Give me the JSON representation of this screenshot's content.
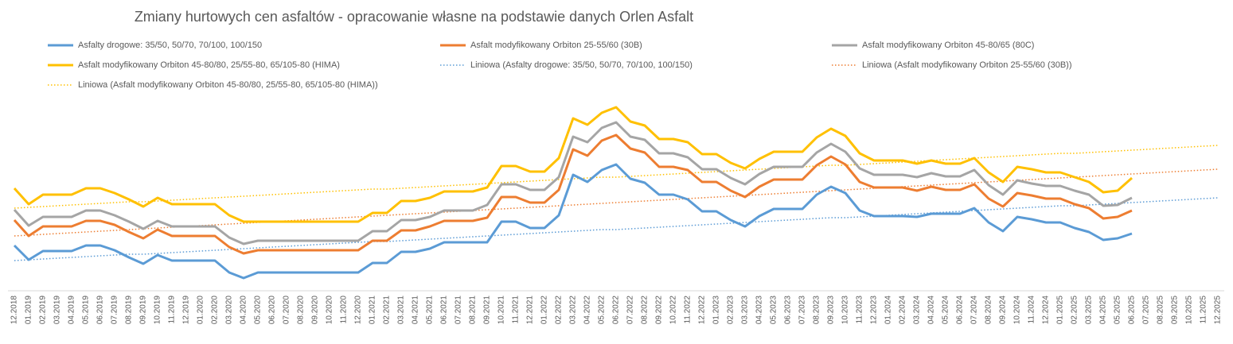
{
  "chart_data": {
    "type": "line",
    "title": "Zmiany hurtowych cen asfaltów - opracowanie własne na podstawie danych Orlen Asfalt",
    "categories": [
      "12.2018",
      "01.2019",
      "02.2019",
      "03.2019",
      "04.2019",
      "05.2019",
      "06.2019",
      "07.2019",
      "08.2019",
      "09.2019",
      "10.2019",
      "11.2019",
      "12.2019",
      "01.2020",
      "02.2020",
      "03.2020",
      "04.2020",
      "05.2020",
      "06.2020",
      "07.2020",
      "08.2020",
      "09.2020",
      "10.2020",
      "11.2020",
      "12.2020",
      "01.2021",
      "02.2021",
      "03.2021",
      "04.2021",
      "05.2021",
      "06.2021",
      "07.2021",
      "08.2021",
      "09.2021",
      "10.2021",
      "11.2021",
      "12.2021",
      "01.2022",
      "02.2022",
      "03.2022",
      "04.2022",
      "05.2022",
      "06.2022",
      "07.2022",
      "08.2022",
      "09.2022",
      "10.2022",
      "11.2022",
      "12.2022",
      "01.2023",
      "02.2023",
      "03.2023",
      "04.2023",
      "05.2023",
      "06.2023",
      "07.2023",
      "08.2023",
      "09.2023",
      "10.2023",
      "11.2023",
      "12.2023",
      "01.2024",
      "02.2024",
      "03.2024",
      "04.2024",
      "05.2024",
      "06.2024",
      "07.2024",
      "08.2024",
      "09.2024",
      "10.2024",
      "11.2024",
      "12.2024",
      "01.2025",
      "02.2025",
      "03.2025",
      "04.2025",
      "05.2025",
      "06.2025",
      "07.2025",
      "08.2025",
      "09.2025",
      "10.2025",
      "11.2025",
      "12.2025"
    ],
    "ylim": [
      0,
      255
    ],
    "series": [
      {
        "name": "Asfalty drogowe: 35/50, 50/70, 70/100, 100/150",
        "color": "#5b9bd5",
        "style": "solid",
        "values": [
          56,
          38,
          49,
          49,
          49,
          56,
          56,
          50,
          41,
          33,
          44,
          37,
          37,
          37,
          37,
          22,
          15,
          22,
          22,
          22,
          22,
          22,
          22,
          22,
          22,
          34,
          34,
          48,
          48,
          52,
          60,
          60,
          60,
          60,
          86,
          86,
          78,
          78,
          94,
          145,
          136,
          151,
          158,
          140,
          135,
          120,
          120,
          114,
          99,
          99,
          88,
          80,
          93,
          102,
          102,
          102,
          120,
          130,
          122,
          100,
          93,
          93,
          93,
          92,
          96,
          96,
          96,
          103,
          85,
          74,
          92,
          89,
          85,
          85,
          78,
          73,
          63,
          65,
          71,
          null,
          null,
          null,
          null,
          null,
          null
        ]
      },
      {
        "name": "Asfalt modyfikowany Orbiton 25-55/60 (30B)",
        "color": "#ed7d31",
        "style": "solid",
        "values": [
          88,
          68,
          80,
          80,
          80,
          87,
          87,
          82,
          73,
          65,
          76,
          68,
          68,
          68,
          68,
          54,
          46,
          50,
          50,
          50,
          50,
          50,
          50,
          50,
          50,
          62,
          62,
          75,
          75,
          80,
          87,
          87,
          87,
          91,
          117,
          117,
          110,
          110,
          126,
          177,
          169,
          188,
          195,
          178,
          173,
          155,
          155,
          151,
          136,
          136,
          125,
          117,
          130,
          139,
          139,
          139,
          157,
          168,
          158,
          136,
          129,
          129,
          129,
          125,
          130,
          126,
          126,
          133,
          115,
          105,
          122,
          119,
          115,
          115,
          108,
          103,
          90,
          92,
          100,
          null,
          null,
          null,
          null,
          null,
          null
        ]
      },
      {
        "name": "Asfalt modyfikowany Orbiton 45-80/65 (80C)",
        "color": "#a5a5a5",
        "style": "solid",
        "values": [
          101,
          81,
          92,
          92,
          92,
          100,
          100,
          94,
          86,
          77,
          87,
          80,
          80,
          80,
          80,
          66,
          58,
          62,
          62,
          62,
          62,
          62,
          62,
          62,
          62,
          74,
          74,
          88,
          88,
          92,
          100,
          100,
          100,
          107,
          133,
          133,
          126,
          126,
          142,
          193,
          186,
          204,
          211,
          193,
          189,
          172,
          172,
          167,
          152,
          152,
          141,
          133,
          146,
          155,
          155,
          155,
          173,
          184,
          174,
          153,
          145,
          145,
          145,
          142,
          147,
          143,
          143,
          151,
          132,
          120,
          138,
          134,
          131,
          131,
          125,
          120,
          106,
          107,
          116,
          null,
          null,
          null,
          null,
          null,
          null
        ]
      },
      {
        "name": "Asfalt modyfikowany Orbiton 45-80/80, 25/55-80, 65/105-80 (HIMA)",
        "color": "#ffc000",
        "style": "solid",
        "values": [
          128,
          108,
          120,
          120,
          120,
          128,
          128,
          122,
          114,
          105,
          116,
          108,
          108,
          108,
          108,
          94,
          86,
          86,
          86,
          86,
          86,
          86,
          86,
          86,
          86,
          97,
          97,
          112,
          112,
          116,
          124,
          124,
          124,
          129,
          156,
          156,
          149,
          149,
          166,
          216,
          208,
          223,
          230,
          212,
          207,
          190,
          190,
          186,
          171,
          171,
          160,
          153,
          165,
          174,
          174,
          174,
          192,
          203,
          194,
          172,
          163,
          163,
          163,
          159,
          163,
          159,
          159,
          166,
          148,
          136,
          155,
          152,
          148,
          148,
          142,
          136,
          123,
          125,
          141,
          null,
          null,
          null,
          null,
          null,
          null
        ]
      },
      {
        "name": "Liniowa (Asfalty drogowe: 35/50, 50/70, 70/100, 100/150)",
        "color": "#5b9bd5",
        "style": "dotted",
        "values": [
          37,
          38,
          39,
          40,
          41,
          42,
          43,
          44,
          45,
          45,
          46,
          47,
          48,
          49,
          50,
          51,
          52,
          53,
          54,
          55,
          56,
          57,
          58,
          59,
          60,
          61,
          61,
          62,
          63,
          64,
          65,
          66,
          67,
          68,
          69,
          70,
          71,
          72,
          73,
          74,
          75,
          76,
          76,
          77,
          78,
          79,
          80,
          81,
          82,
          83,
          84,
          85,
          86,
          87,
          88,
          89,
          90,
          91,
          91,
          92,
          93,
          94,
          95,
          96,
          97,
          98,
          99,
          100,
          101,
          102,
          103,
          104,
          105,
          106,
          106,
          107,
          108,
          109,
          110,
          111,
          112,
          113,
          114,
          115,
          116
        ]
      },
      {
        "name": "Liniowa (Asfalt modyfikowany Orbiton 25-55/60 (30B))",
        "color": "#ed7d31",
        "style": "dotted",
        "values": [
          68,
          69,
          70,
          71,
          72,
          73,
          74,
          75,
          76,
          77,
          78,
          79,
          80,
          81,
          82,
          83,
          84,
          85,
          86,
          87,
          88,
          89,
          90,
          91,
          92,
          93,
          94,
          95,
          96,
          97,
          98,
          99,
          100,
          101,
          102,
          103,
          104,
          105,
          106,
          107,
          108,
          109,
          110,
          111,
          112,
          113,
          114,
          115,
          116,
          117,
          118,
          119,
          120,
          121,
          122,
          123,
          124,
          125,
          126,
          127,
          128,
          129,
          130,
          131,
          132,
          133,
          134,
          135,
          136,
          137,
          138,
          139,
          140,
          141,
          142,
          143,
          144,
          145,
          146,
          147,
          148,
          149,
          150,
          151,
          152
        ]
      },
      {
        "name": "Liniowa (Asfalt modyfikowany Orbiton 45-80/80, 25/55-80, 65/105-80 (HIMA))",
        "color": "#ffc000",
        "style": "dotted",
        "values": [
          103,
          104,
          105,
          106,
          107,
          108,
          109,
          110,
          111,
          111,
          112,
          113,
          114,
          115,
          116,
          117,
          118,
          119,
          120,
          121,
          122,
          123,
          124,
          125,
          126,
          127,
          127,
          128,
          129,
          130,
          131,
          132,
          133,
          134,
          135,
          136,
          137,
          138,
          139,
          140,
          141,
          142,
          142,
          143,
          144,
          145,
          146,
          147,
          148,
          149,
          150,
          151,
          152,
          153,
          154,
          155,
          156,
          157,
          157,
          158,
          159,
          160,
          161,
          162,
          163,
          164,
          165,
          166,
          167,
          168,
          169,
          170,
          171,
          172,
          172,
          173,
          174,
          175,
          176,
          177,
          178,
          179,
          180,
          181,
          182
        ]
      }
    ]
  }
}
